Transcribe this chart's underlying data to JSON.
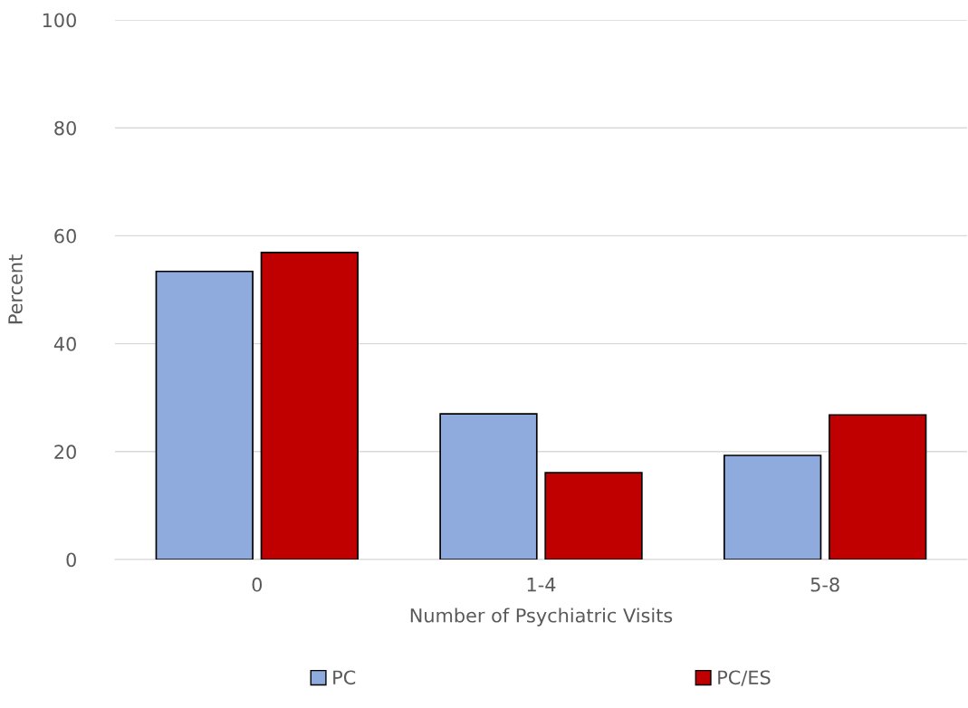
{
  "chart_data": {
    "type": "bar",
    "xlabel": "Number of Psychiatric Visits",
    "ylabel": "Percent",
    "categories": [
      "0",
      "1-4",
      "5-8"
    ],
    "series": [
      {
        "name": "PC",
        "color": "#8faadc",
        "values": [
          53.4,
          27.0,
          19.3
        ]
      },
      {
        "name": "PC/ES",
        "color": "#c00000",
        "values": [
          56.9,
          16.1,
          26.8
        ]
      }
    ],
    "ylim": [
      0,
      100
    ],
    "yticks": [
      0,
      20,
      40,
      60,
      80,
      100
    ],
    "grid": "y",
    "legend": "bottom"
  }
}
